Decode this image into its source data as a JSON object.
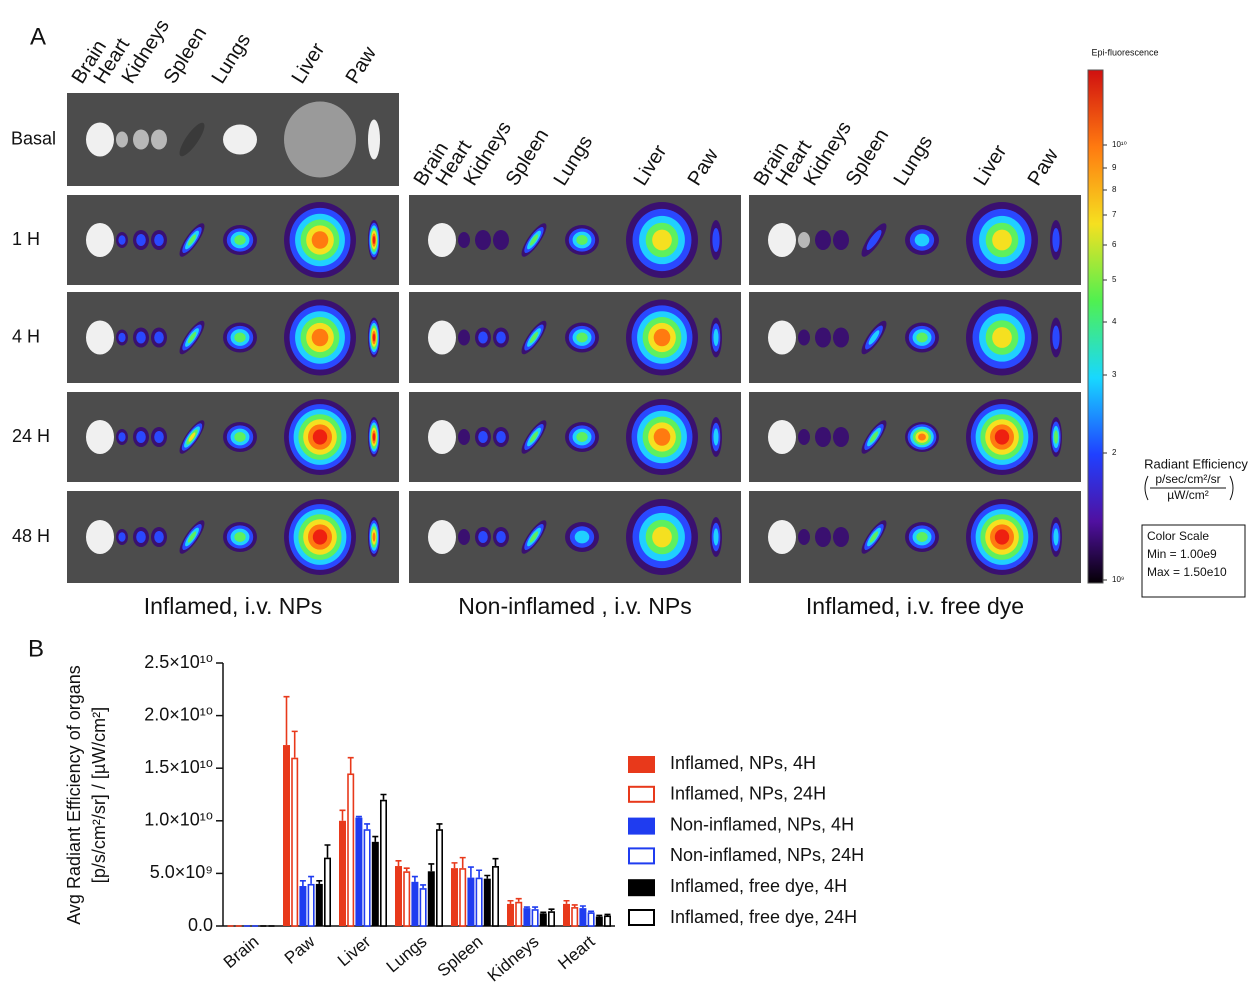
{
  "panel_a": {
    "label": "A",
    "organs": [
      "Brain",
      "Heart",
      "Kidneys",
      "Spleen",
      "Lungs",
      "Liver",
      "Paw"
    ],
    "rows": [
      "Basal",
      "1 H",
      "4 H",
      "24 H",
      "48 H"
    ],
    "groups": [
      "Inflamed, i.v. NPs",
      "Non-inflamed , i.v. NPs",
      "Inflamed, i.v. free dye"
    ],
    "colorbar": {
      "title": "Epi-fluorescence",
      "tick_labels": [
        "10¹⁰",
        "9",
        "8",
        "7",
        "6",
        "5",
        "4",
        "3",
        "2",
        "10⁹"
      ],
      "unit_title": "Radiant Efficiency",
      "unit_numerator": "p/sec/cm²/sr",
      "unit_denominator": "µW/cm²",
      "box_title": "Color Scale",
      "min": "Min = 1.00e9",
      "max": "Max = 1.50e10"
    }
  },
  "panel_b_label": "B",
  "chart_data": {
    "type": "bar",
    "ylabel": [
      "Avg Radiant Efficiency of organs",
      "[p/s/cm²/sr] / [µW/cm²]"
    ],
    "categories": [
      "Brain",
      "Paw",
      "Liver",
      "Lungs",
      "Spleen",
      "Kidneys",
      "Heart"
    ],
    "ylim": [
      0,
      25000000000.0
    ],
    "yticks": [
      {
        "value": 0,
        "label": "0.0"
      },
      {
        "value": 5000000000.0,
        "label": "5.0×10⁹"
      },
      {
        "value": 10000000000.0,
        "label": "1.0×10¹⁰"
      },
      {
        "value": 15000000000.0,
        "label": "1.5×10¹⁰"
      },
      {
        "value": 20000000000.0,
        "label": "2.0×10¹⁰"
      },
      {
        "value": 25000000000.0,
        "label": "2.5×10¹⁰"
      }
    ],
    "series": [
      {
        "name": "Inflamed, NPs, 4H",
        "color": "#e8391b",
        "style": "filled",
        "values": [
          0,
          17200000000.0,
          10000000000.0,
          5700000000.0,
          5500000000.0,
          2100000000.0,
          2100000000.0
        ],
        "errors": [
          0,
          4600000000.0,
          1000000000.0,
          500000000.0,
          500000000.0,
          300000000.0,
          300000000.0
        ]
      },
      {
        "name": "Inflamed, NPs, 24H",
        "color": "#e8391b",
        "style": "outline",
        "values": [
          0,
          16000000000.0,
          14500000000.0,
          5200000000.0,
          5500000000.0,
          2300000000.0,
          1800000000.0
        ],
        "errors": [
          0,
          2500000000.0,
          1500000000.0,
          300000000.0,
          1000000000.0,
          300000000.0,
          200000000.0
        ]
      },
      {
        "name": "Non-inflamed, NPs, 4H",
        "color": "#1f3cf0",
        "style": "filled",
        "values": [
          0,
          3800000000.0,
          10300000000.0,
          4200000000.0,
          4600000000.0,
          1700000000.0,
          1700000000.0
        ],
        "errors": [
          0,
          500000000.0,
          100000000.0,
          500000000.0,
          1000000000.0,
          100000000.0,
          200000000.0
        ]
      },
      {
        "name": "Non-inflamed, NPs, 24H",
        "color": "#1f3cf0",
        "style": "outline",
        "values": [
          0,
          4000000000.0,
          9200000000.0,
          3600000000.0,
          4600000000.0,
          1600000000.0,
          1300000000.0
        ],
        "errors": [
          0,
          700000000.0,
          500000000.0,
          300000000.0,
          700000000.0,
          200000000.0,
          100000000.0
        ]
      },
      {
        "name": "Inflamed, free dye, 4H",
        "color": "#000000",
        "style": "filled",
        "values": [
          0,
          4000000000.0,
          8000000000.0,
          5200000000.0,
          4500000000.0,
          1200000000.0,
          900000000.0
        ],
        "errors": [
          0,
          300000000.0,
          500000000.0,
          700000000.0,
          300000000.0,
          100000000.0,
          100000000.0
        ]
      },
      {
        "name": "Inflamed, free dye, 24H",
        "color": "#000000",
        "style": "outline",
        "values": [
          0,
          6500000000.0,
          12000000000.0,
          9200000000.0,
          5700000000.0,
          1400000000.0,
          1000000000.0
        ],
        "errors": [
          0,
          1200000000.0,
          500000000.0,
          500000000.0,
          700000000.0,
          200000000.0,
          100000000.0
        ]
      }
    ]
  }
}
